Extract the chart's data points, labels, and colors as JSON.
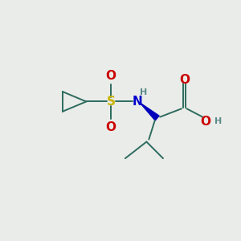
{
  "bg_color": "#eaece9",
  "bond_color": "#2d6b5e",
  "S_color": "#c8b400",
  "N_color": "#0000cc",
  "O_color": "#cc0000",
  "H_color": "#5a8a8a",
  "wedge_color": "#0000bb",
  "font_size_atoms": 11,
  "font_size_H": 8,
  "figsize": [
    3.0,
    3.0
  ],
  "dpi": 100,
  "xlim": [
    0,
    10
  ],
  "ylim": [
    0,
    10
  ]
}
